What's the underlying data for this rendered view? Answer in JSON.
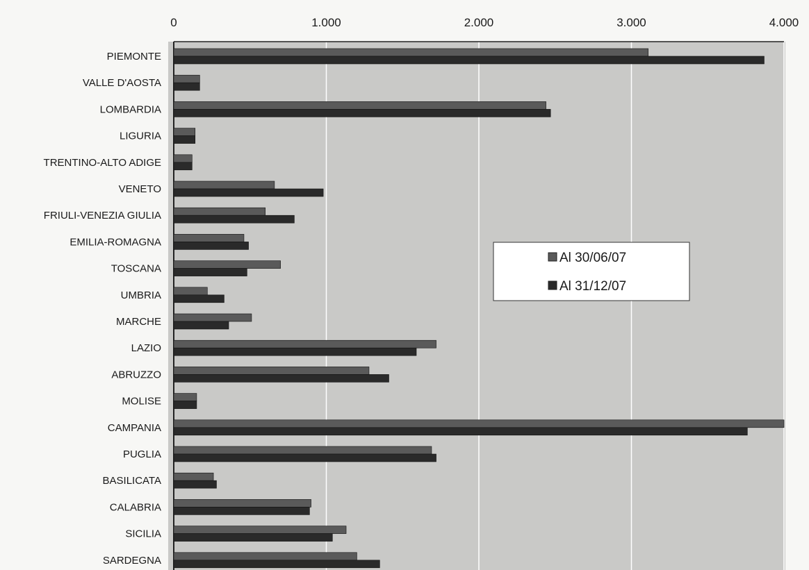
{
  "chart_data": {
    "type": "bar",
    "orientation": "horizontal",
    "title": "",
    "xlabel": "",
    "ylabel": "",
    "xlim": [
      0,
      4000
    ],
    "ticks": [
      0,
      1000,
      2000,
      3000,
      4000
    ],
    "tick_labels": [
      "0",
      "1.000",
      "2.000",
      "3.000",
      "4.000"
    ],
    "tick_position": "top",
    "grid": true,
    "legend_position": "center-right",
    "categories": [
      "PIEMONTE",
      "VALLE D'AOSTA",
      "LOMBARDIA",
      "LIGURIA",
      "TRENTINO-ALTO ADIGE",
      "VENETO",
      "FRIULI-VENEZIA GIULIA",
      "EMILIA-ROMAGNA",
      "TOSCANA",
      "UMBRIA",
      "MARCHE",
      "LAZIO",
      "ABRUZZO",
      "MOLISE",
      "CAMPANIA",
      "PUGLIA",
      "BASILICATA",
      "CALABRIA",
      "SICILIA",
      "SARDEGNA"
    ],
    "series": [
      {
        "name": "Al 30/06/07",
        "color": "#5a5a5a",
        "values": [
          3110,
          170,
          2440,
          140,
          120,
          660,
          600,
          460,
          700,
          220,
          510,
          1720,
          1280,
          150,
          4000,
          1690,
          260,
          900,
          1130,
          1200
        ]
      },
      {
        "name": "Al 31/12/07",
        "color": "#2a2a2a",
        "values": [
          3870,
          170,
          2470,
          140,
          120,
          980,
          790,
          490,
          480,
          330,
          360,
          1590,
          1410,
          150,
          3760,
          1720,
          280,
          890,
          1040,
          1350
        ]
      }
    ]
  },
  "colors": {
    "plot_bg": "#c9c9c7",
    "grid": "#ffffff",
    "frame": "#222222"
  }
}
